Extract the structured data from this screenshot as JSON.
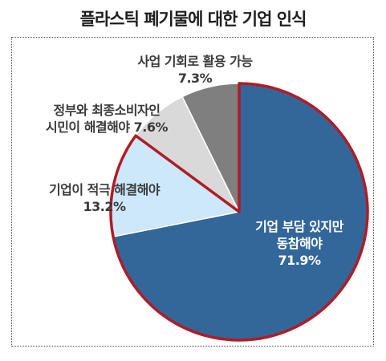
{
  "chart_data": {
    "type": "pie",
    "title": "플라스틱 폐기물에 대한 기업 인식",
    "slices": [
      {
        "label_lines": [
          "기업 부담 있지만",
          "동참해야"
        ],
        "value_text": "71.9%",
        "value": 71.9,
        "color": "#336699"
      },
      {
        "label_lines": [
          "기업이 적극 해결해야"
        ],
        "value_text": "13.2%",
        "value": 13.2,
        "color": "#cce8fa"
      },
      {
        "label_lines": [
          "정부와 최종소비자인",
          "시민이 해결해야 7.6%"
        ],
        "value_text": "",
        "value": 7.6,
        "color": "#d9d9d9"
      },
      {
        "label_lines": [
          "사업 기회로 활용 가능"
        ],
        "value_text": "7.3%",
        "value": 7.3,
        "color": "#7f7f7f"
      }
    ],
    "highlight_stroke": "#b01c24",
    "slice_stroke": "#ffffff"
  }
}
